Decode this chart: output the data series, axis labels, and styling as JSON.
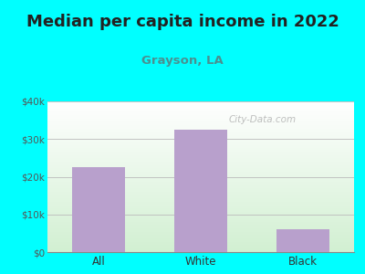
{
  "title": "Median per capita income in 2022",
  "subtitle": "Grayson, LA",
  "categories": [
    "All",
    "White",
    "Black"
  ],
  "values": [
    22500,
    32500,
    6000
  ],
  "bar_color": "#b8a0cc",
  "title_fontsize": 13,
  "subtitle_fontsize": 9.5,
  "subtitle_color": "#4a9090",
  "bg_outer_color": "#00FFFF",
  "bg_inner_top": "#f0faf0",
  "bg_inner_bottom": "#ffffff",
  "ylim": [
    0,
    40000
  ],
  "yticks": [
    0,
    10000,
    20000,
    30000,
    40000
  ],
  "ytick_labels": [
    "$0",
    "$10k",
    "$20k",
    "$30k",
    "$40k"
  ],
  "watermark": "City-Data.com",
  "title_color": "#222222"
}
